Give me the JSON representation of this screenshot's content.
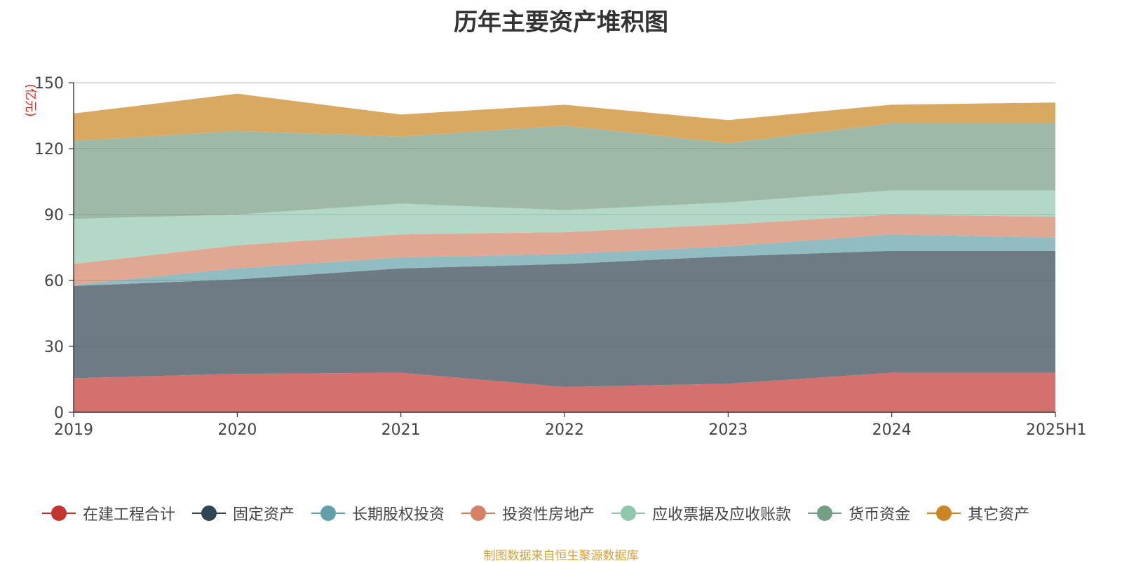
{
  "chart_data": {
    "type": "area",
    "stacked": true,
    "title": "历年主要资产堆积图",
    "ylabel": "(亿元)",
    "categories": [
      "2019",
      "2020",
      "2021",
      "2022",
      "2023",
      "2024",
      "2025H1"
    ],
    "ylim": [
      0,
      150
    ],
    "yticks": [
      0,
      30,
      60,
      90,
      120,
      150
    ],
    "grid": true,
    "legend_position": "bottom",
    "series": [
      {
        "name": "在建工程合计",
        "color": "#c23531",
        "area_color": "#d4716f",
        "values": [
          15.5,
          17.5,
          18.0,
          11.5,
          13.0,
          18.0,
          18.0
        ]
      },
      {
        "name": "固定资产",
        "color": "#2f4554",
        "area_color": "#6e7b85",
        "values": [
          42.0,
          43.0,
          47.5,
          56.0,
          58.0,
          55.5,
          55.5
        ]
      },
      {
        "name": "长期股权投资",
        "color": "#61a0a8",
        "area_color": "#90bcc2",
        "values": [
          0.5,
          5.0,
          5.0,
          4.5,
          4.5,
          7.5,
          6.0
        ]
      },
      {
        "name": "投资性房地产",
        "color": "#d48265",
        "area_color": "#e0a793",
        "values": [
          9.5,
          10.5,
          10.5,
          10.0,
          10.0,
          9.0,
          9.5
        ]
      },
      {
        "name": "应收票据及应收账款",
        "color": "#91c7ae",
        "area_color": "#b3d8c7",
        "values": [
          20.5,
          14.0,
          14.0,
          10.0,
          10.0,
          11.0,
          12.0
        ]
      },
      {
        "name": "货币资金",
        "color": "#749f83",
        "area_color": "#9eb9a7",
        "values": [
          35.5,
          38.0,
          30.5,
          38.5,
          27.0,
          30.5,
          30.5
        ]
      },
      {
        "name": "其它资产",
        "color": "#ca8622",
        "area_color": "#d9a962",
        "values": [
          12.5,
          17.0,
          10.0,
          9.5,
          10.5,
          8.5,
          9.5
        ]
      }
    ]
  },
  "footer": {
    "source": "制图数据来自恒生聚源数据库"
  }
}
